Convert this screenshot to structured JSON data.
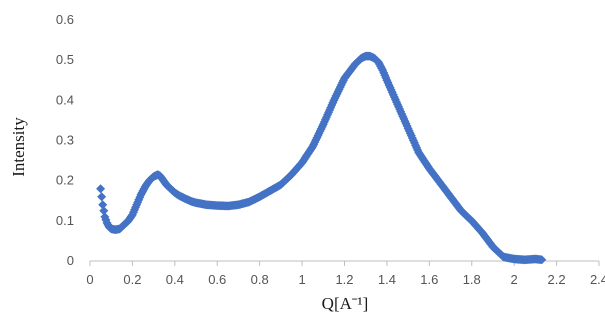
{
  "chart_data": {
    "type": "scatter",
    "title": "",
    "xlabel": "Q[Aˉ¹]",
    "ylabel": "Intensity",
    "xlim": [
      0,
      2.4
    ],
    "ylim": [
      0,
      0.6
    ],
    "xticks": [
      "0",
      "0.2",
      "0.4",
      "0.6",
      "0.8",
      "1",
      "1.2",
      "1.4",
      "1.6",
      "1.8",
      "2",
      "2.2",
      "2.4"
    ],
    "yticks": [
      "0",
      "0.1",
      "0.2",
      "0.3",
      "0.4",
      "0.5",
      "0.6"
    ],
    "grid": false,
    "legend": "none",
    "marker": "diamond",
    "color": "#4472c4",
    "series": [
      {
        "x": [
          0.05,
          0.06,
          0.07,
          0.08,
          0.09,
          0.1,
          0.12,
          0.14,
          0.16,
          0.18,
          0.2,
          0.22,
          0.24,
          0.26,
          0.28,
          0.3,
          0.32,
          0.33,
          0.34,
          0.36,
          0.38,
          0.4,
          0.42,
          0.45,
          0.48,
          0.5,
          0.55,
          0.6,
          0.65,
          0.7,
          0.75,
          0.8,
          0.85,
          0.9,
          0.95,
          1.0,
          1.05,
          1.1,
          1.15,
          1.2,
          1.25,
          1.28,
          1.3,
          1.32,
          1.34,
          1.36,
          1.38,
          1.4,
          1.45,
          1.5,
          1.55,
          1.6,
          1.65,
          1.7,
          1.75,
          1.8,
          1.85,
          1.9,
          1.95,
          2.0,
          2.05,
          2.1,
          2.13
        ],
        "y": [
          0.18,
          0.14,
          0.11,
          0.095,
          0.085,
          0.08,
          0.078,
          0.08,
          0.09,
          0.1,
          0.115,
          0.14,
          0.165,
          0.185,
          0.2,
          0.21,
          0.215,
          0.212,
          0.205,
          0.19,
          0.18,
          0.17,
          0.163,
          0.155,
          0.148,
          0.145,
          0.14,
          0.138,
          0.137,
          0.14,
          0.147,
          0.16,
          0.175,
          0.19,
          0.215,
          0.245,
          0.285,
          0.34,
          0.4,
          0.455,
          0.49,
          0.505,
          0.51,
          0.51,
          0.505,
          0.495,
          0.475,
          0.45,
          0.39,
          0.33,
          0.27,
          0.23,
          0.195,
          0.16,
          0.125,
          0.1,
          0.07,
          0.035,
          0.01,
          0.005,
          0.003,
          0.005,
          0.003
        ]
      }
    ]
  }
}
